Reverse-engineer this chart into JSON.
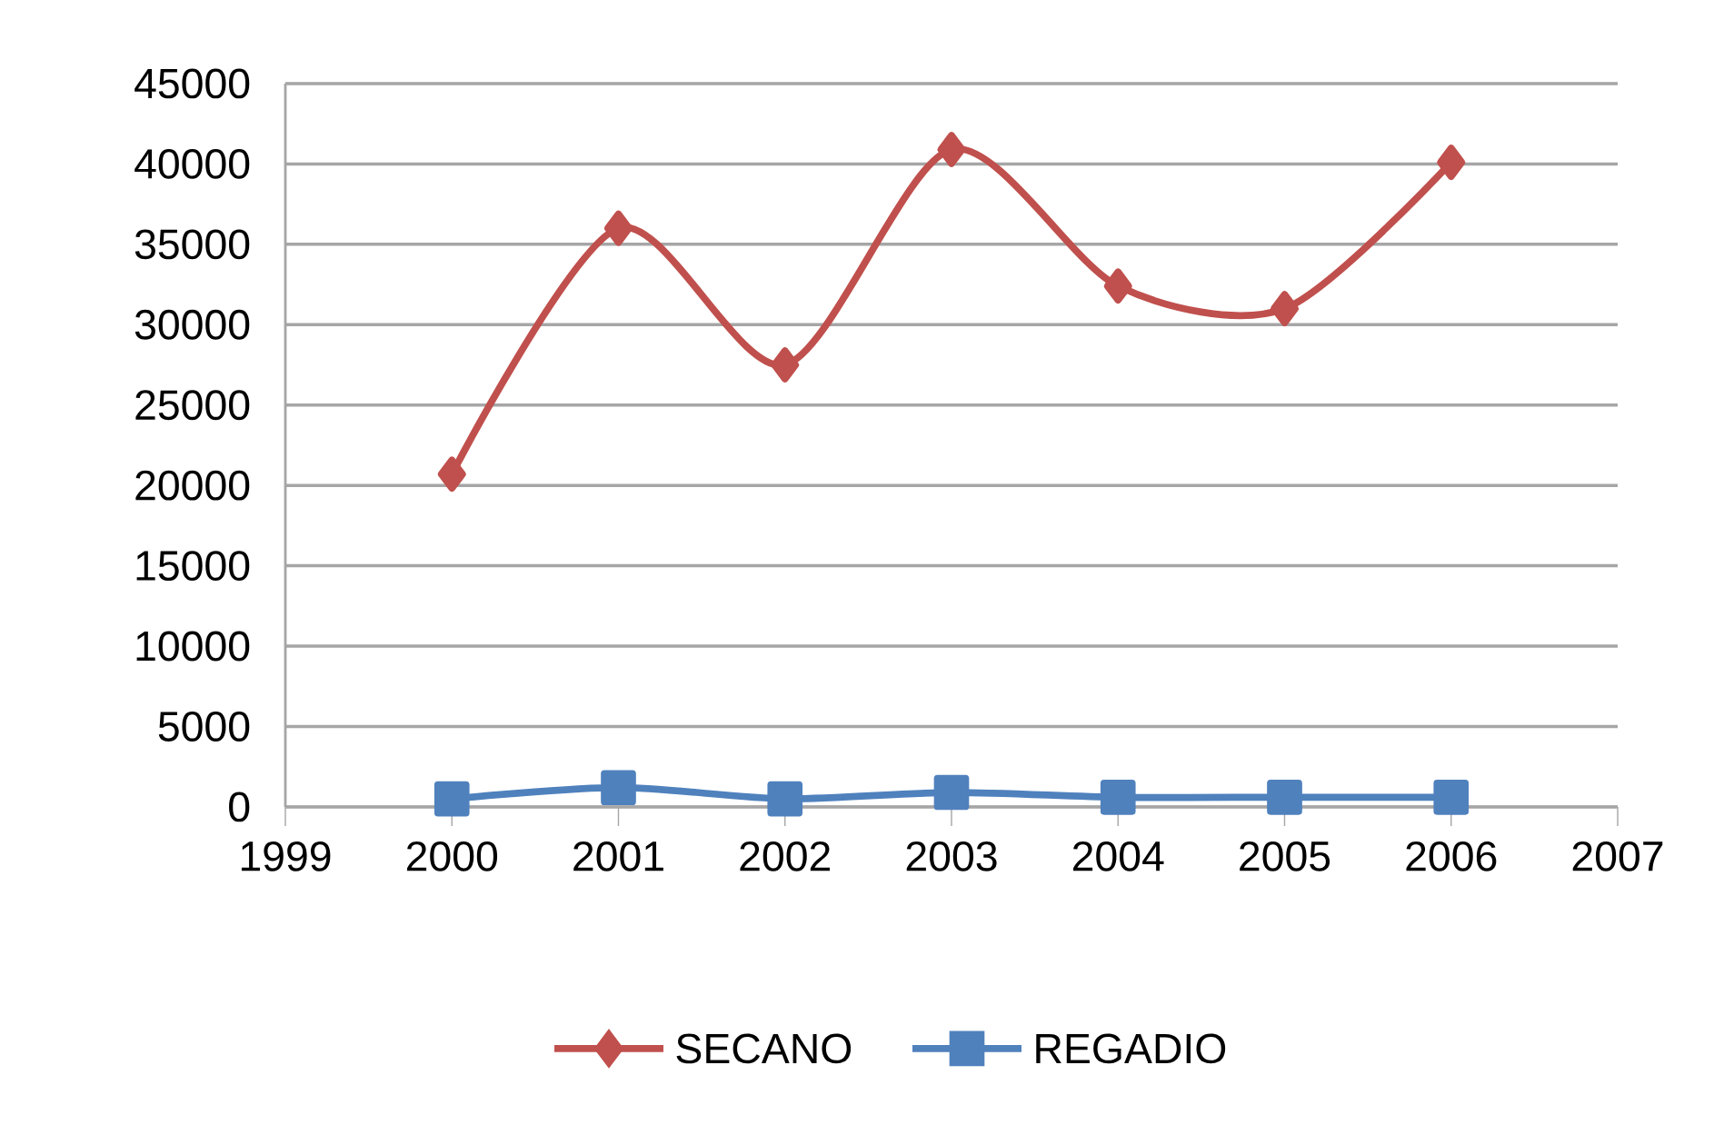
{
  "chart_data": {
    "type": "line",
    "x": [
      2000,
      2001,
      2002,
      2003,
      2004,
      2005,
      2006
    ],
    "series": [
      {
        "name": "SECANO",
        "color": "#c0504d",
        "marker": "diamond",
        "values": [
          20700,
          36000,
          27500,
          40900,
          32400,
          31000,
          40100
        ]
      },
      {
        "name": "REGADIO",
        "color": "#4f81bd",
        "marker": "square",
        "values": [
          500,
          1200,
          500,
          900,
          600,
          600,
          600
        ]
      }
    ],
    "xlim": [
      1999,
      2007
    ],
    "xticks": [
      1999,
      2000,
      2001,
      2002,
      2003,
      2004,
      2005,
      2006,
      2007
    ],
    "ylim": [
      0,
      45000
    ],
    "yticks": [
      0,
      5000,
      10000,
      15000,
      20000,
      25000,
      30000,
      35000,
      40000,
      45000
    ],
    "grid": "y",
    "legend": "bottom"
  }
}
